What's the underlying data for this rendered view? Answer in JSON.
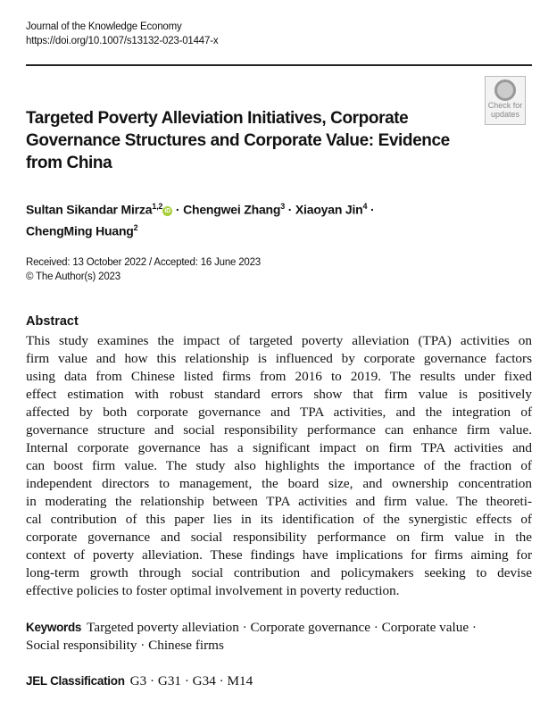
{
  "journal": {
    "name": "Journal of the Knowledge Economy",
    "doi": "https://doi.org/10.1007/s13132-023-01447-x"
  },
  "check_updates": {
    "icon": "bookmark-circle-icon",
    "line1": "Check for",
    "line2": "updates"
  },
  "title_lines": [
    "Targeted Poverty Alleviation Initiatives, Corporate",
    "Governance Structures and Corporate Value: Evidence",
    "from China"
  ],
  "authors": [
    {
      "name": "Sultan Sikandar Mirza",
      "aff": "1,2",
      "orcid": "iD"
    },
    {
      "name": "Chengwei Zhang",
      "aff": "3"
    },
    {
      "name": "Xiaoyan Jin",
      "aff": "4"
    },
    {
      "name": "ChengMing Huang",
      "aff": "2"
    }
  ],
  "dates": {
    "received_accepted": "Received: 13 October 2022 / Accepted: 16 June 2023",
    "copyright": "© The Author(s) 2023"
  },
  "abstract": {
    "heading": "Abstract",
    "lines": [
      "This study examines the impact of targeted poverty alleviation (TPA) activities on",
      "firm value and how this relationship is influenced by corporate governance factors",
      "using data from Chinese listed firms from 2016 to 2019. The results under fixed",
      "effect estimation with robust standard errors show that firm value is positively",
      "affected by both corporate governance and TPA activities, and the integration of",
      "governance structure and social responsibility performance can enhance firm value.",
      "Internal corporate governance has a significant impact on firm TPA activities and",
      "can boost firm value. The study also highlights the importance of the fraction of",
      "independent directors to management, the board size, and ownership concentration",
      "in moderating the relationship between TPA activities and firm value. The theoreti-",
      "cal contribution of this paper lies in its identification of the synergistic effects of",
      "corporate governance and social responsibility performance on firm value in the",
      "context of poverty alleviation. These findings have implications for firms aiming for",
      "long-term growth through social contribution and policymakers seeking to devise",
      "effective policies to foster optimal involvement in poverty reduction."
    ]
  },
  "keywords": {
    "label": "Keywords",
    "line1": "Targeted poverty alleviation · Corporate governance · Corporate value ·",
    "line2": "Social responsibility · Chinese firms"
  },
  "jel": {
    "label": "JEL Classification",
    "codes": "G3 · G31 · G34 · M14"
  }
}
